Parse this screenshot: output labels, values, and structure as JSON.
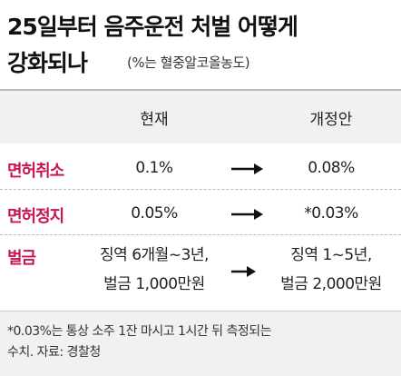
{
  "header": {
    "title_lines": [
      "25일부터 음주운전 처벌 어떻게",
      "강화되나"
    ],
    "subtitle": "(%는 혈중알코올농도)"
  },
  "table": {
    "columns": [
      "현재",
      "개정안"
    ],
    "rows": [
      {
        "label": "면허취소",
        "current": [
          "0.1%"
        ],
        "proposed": [
          "0.08%"
        ]
      },
      {
        "label": "면허정지",
        "current": [
          "0.05%"
        ],
        "proposed": [
          "*0.03%"
        ]
      },
      {
        "label": "벌금",
        "current": [
          "징역 6개월~3년,",
          "벌금 1,000만원"
        ],
        "proposed": [
          "징역 1~5년,",
          "벌금 2,000만원"
        ]
      }
    ]
  },
  "footer": {
    "note_lines": [
      "*0.03%는 통상 소주 1잔 마시고 1시간 뒤 측정되는",
      "수치. 자료: 경찰청"
    ]
  }
}
